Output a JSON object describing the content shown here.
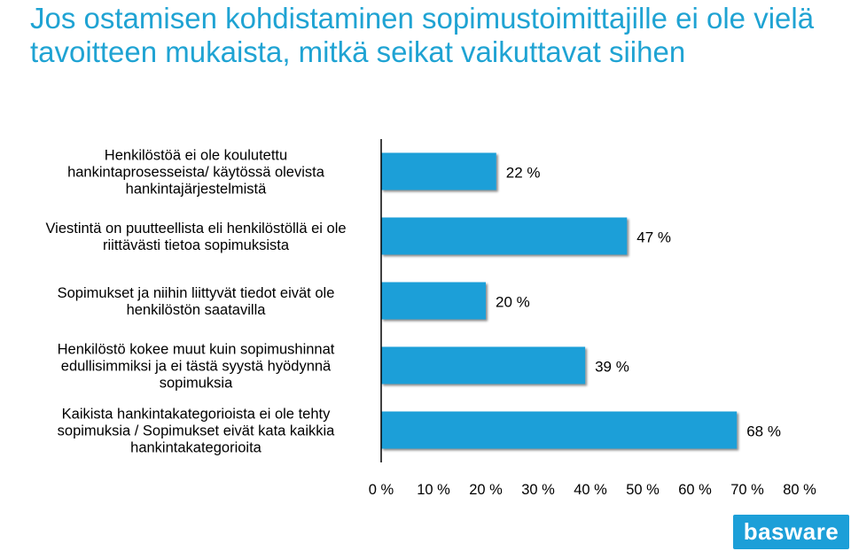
{
  "title": "Jos ostamisen kohdistaminen sopimustoimittajille ei ole vielä tavoitteen mukaista, mitkä seikat vaikuttavat siihen",
  "logo": {
    "text": "basware"
  },
  "colors": {
    "title": "#1fa3d3",
    "bar": "#1c9fd8",
    "axis": "#000000"
  },
  "chart_data": {
    "type": "bar",
    "orientation": "horizontal",
    "categories": [
      [
        "Henkilöstöä ei ole koulutettu",
        "hankintaprosesseista/ käytössä olevista",
        "hankintajärjestelmistä"
      ],
      [
        "Viestintä on puutteellista eli henkilöstöllä ei ole",
        "riittävästi tietoa sopimuksista"
      ],
      [
        "Sopimukset ja niihin liittyvät tiedot eivät ole",
        "henkilöstön saatavilla"
      ],
      [
        "Henkilöstö kokee muut kuin sopimushinnat",
        "edullisimmiksi ja ei tästä syystä hyödynnä",
        "sopimuksia"
      ],
      [
        "Kaikista hankintakategorioista ei ole tehty",
        "sopimuksia / Sopimukset eivät kata kaikkia",
        "hankintakategorioita"
      ]
    ],
    "values": [
      22,
      47,
      20,
      39,
      68
    ],
    "value_labels": [
      "22 %",
      "47 %",
      "20 %",
      "39 %",
      "68 %"
    ],
    "xlim": [
      0,
      80
    ],
    "xticks": [
      0,
      10,
      20,
      30,
      40,
      50,
      60,
      70,
      80
    ],
    "xtick_labels": [
      "0 %",
      "10 %",
      "20 %",
      "30 %",
      "40 %",
      "50 %",
      "60 %",
      "70 %",
      "80 %"
    ],
    "grid": false,
    "legend": "none"
  }
}
